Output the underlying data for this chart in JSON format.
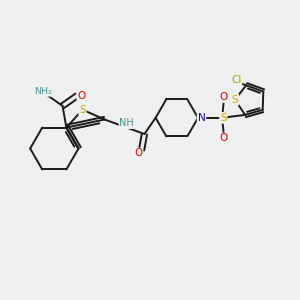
{
  "background_color": "#efefef",
  "bond_color": "#1a1a1a",
  "atom_colors": {
    "S": "#ccaa00",
    "N": "#0000ee",
    "O": "#ee0000",
    "Cl": "#88bb00",
    "H_label": "#4a9090"
  },
  "figsize": [
    3.0,
    3.0
  ],
  "dpi": 100
}
